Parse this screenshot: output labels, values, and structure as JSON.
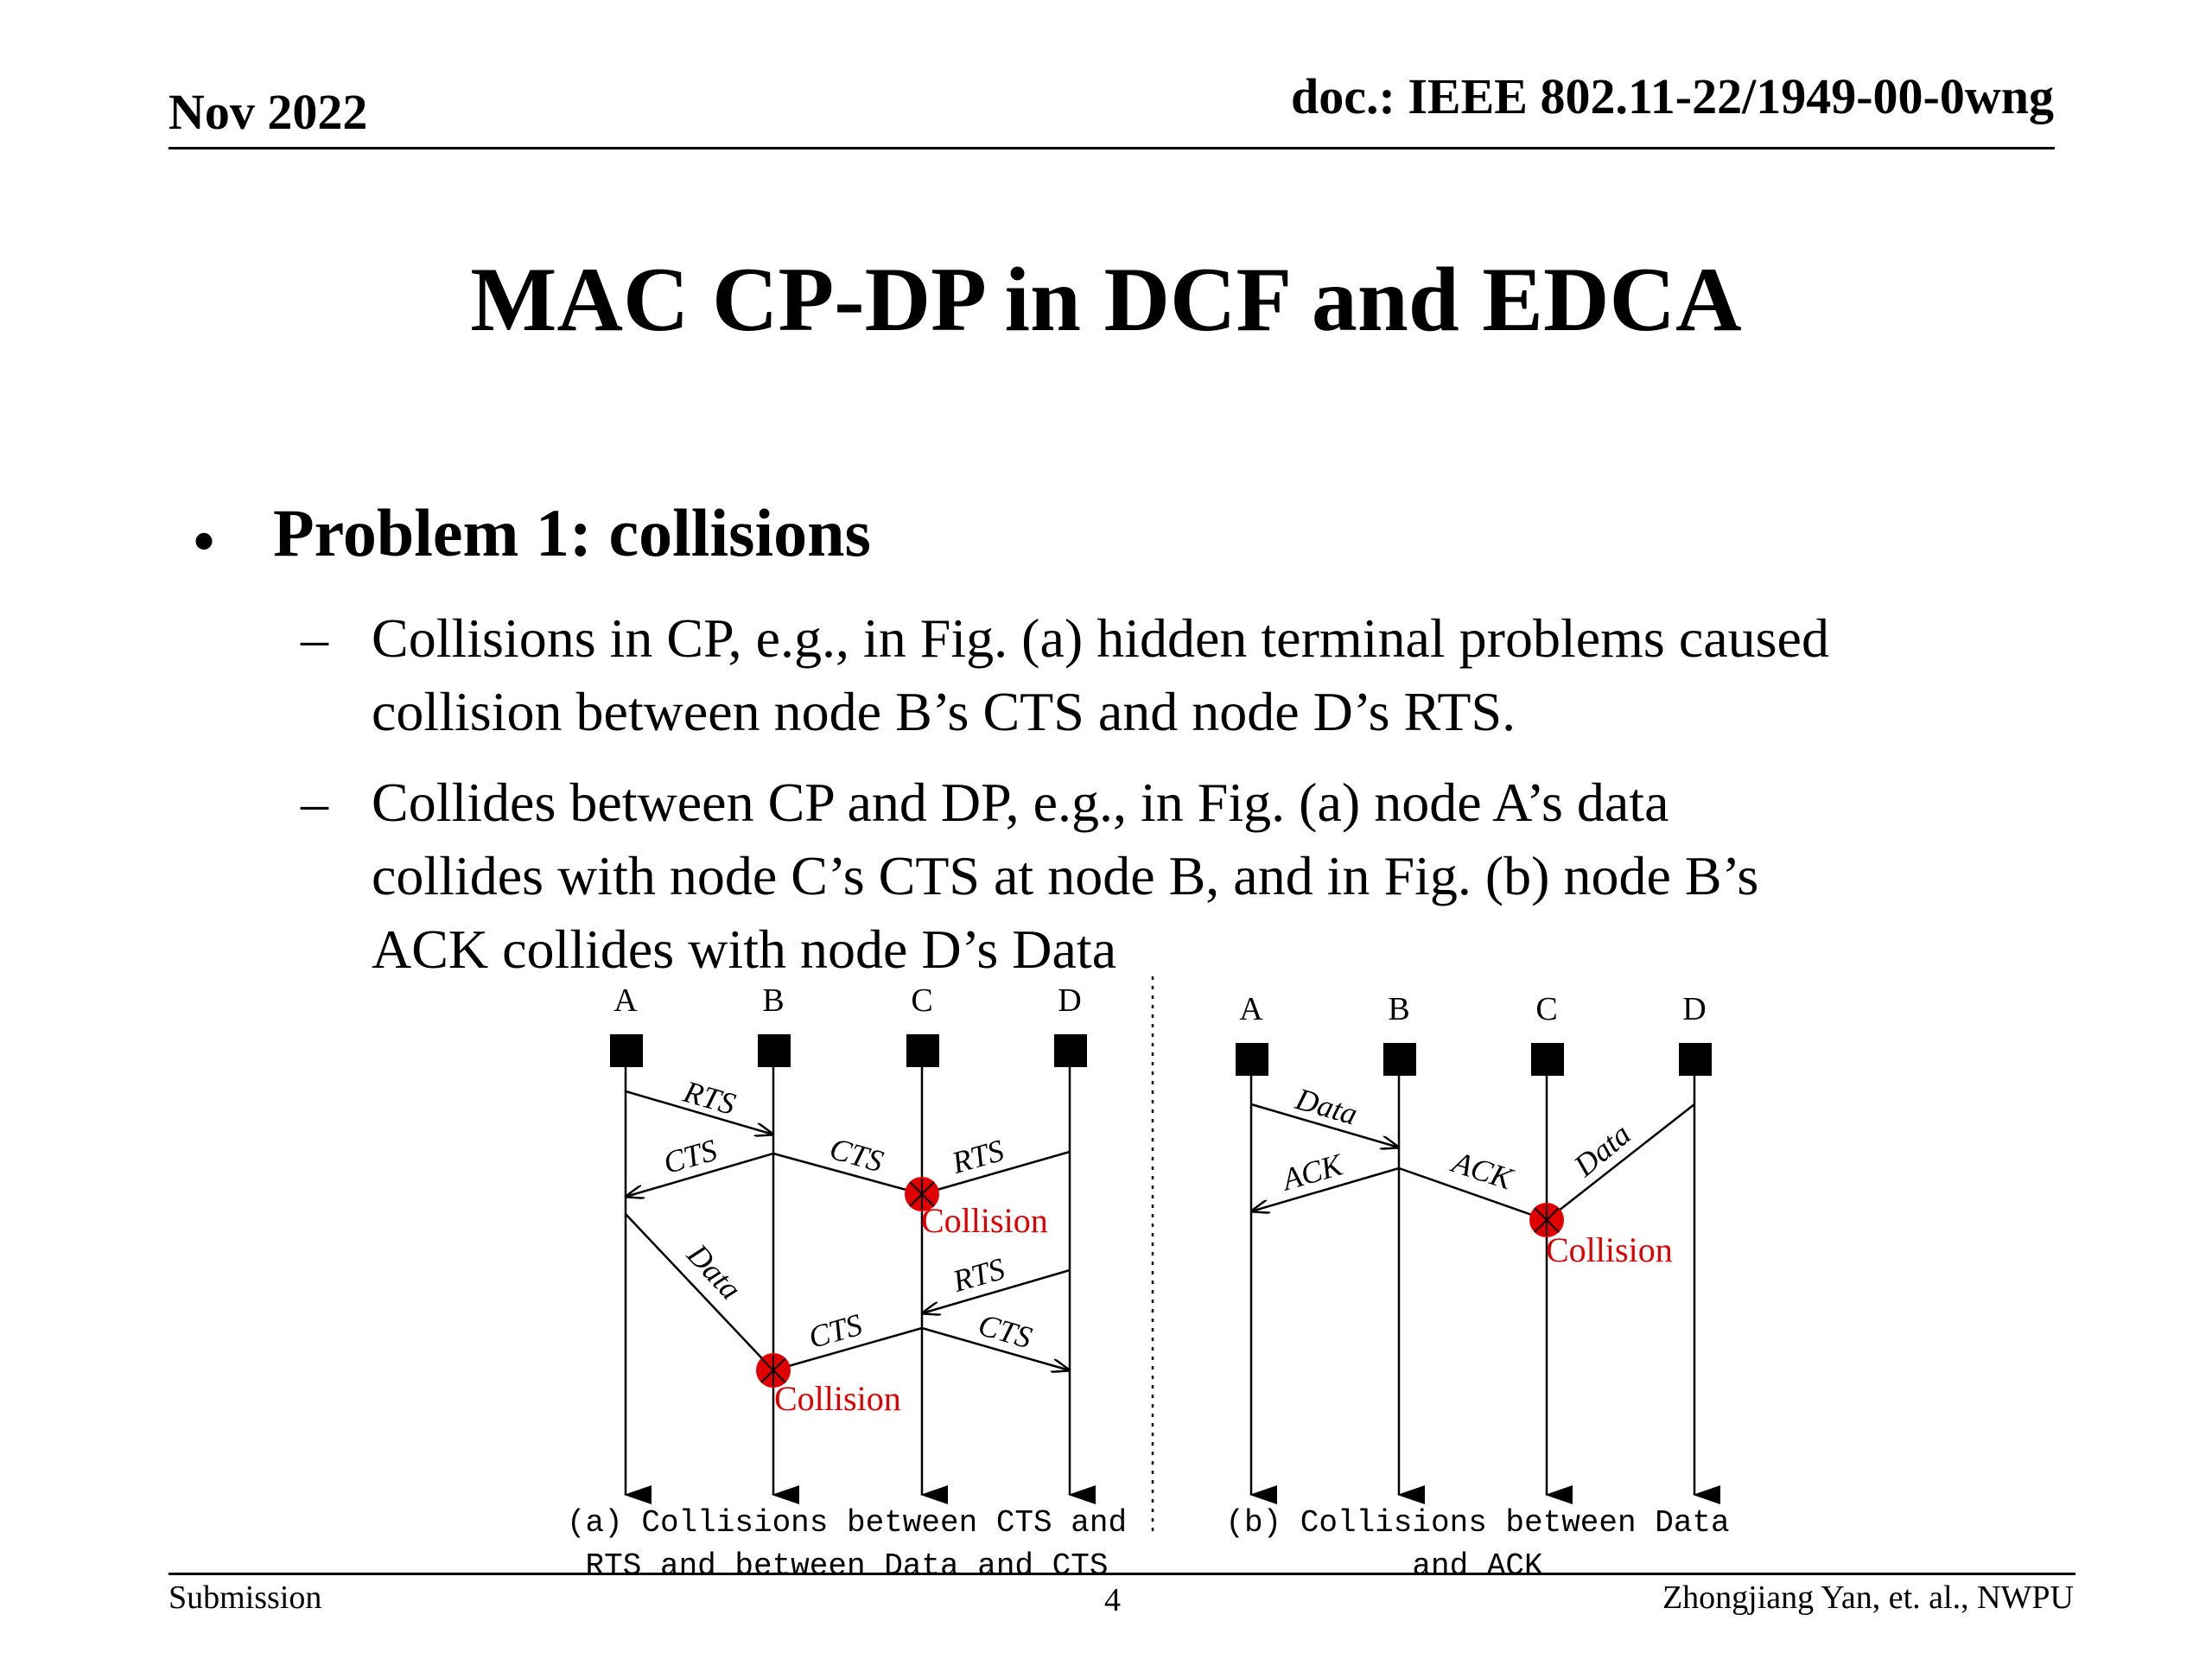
{
  "header": {
    "date": "Nov 2022",
    "doc": "doc.: IEEE 802.11-22/1949-00-0wng"
  },
  "title": "MAC CP-DP in DCF and EDCA",
  "bullet": {
    "marker": "•",
    "text": "Problem 1: collisions",
    "subs": [
      {
        "marker": "–",
        "lines": [
          "Collisions in CP, e.g., in Fig. (a) hidden terminal problems caused",
          "collision between node B’s CTS and node D’s RTS."
        ]
      },
      {
        "marker": "–",
        "lines": [
          "Collides between CP and DP, e.g., in Fig. (a) node A’s data",
          "collides with node C’s CTS at node B, and in Fig. (b) node B’s",
          "ACK collides with node D’s Data"
        ]
      }
    ]
  },
  "figure": {
    "nodes_a": [
      "A",
      "B",
      "C",
      "D"
    ],
    "nodes_b": [
      "A",
      "B",
      "C",
      "D"
    ],
    "labels": {
      "rts": "RTS",
      "cts": "CTS",
      "data": "Data",
      "ack": "ACK",
      "collision": "Collision"
    },
    "caption_a": [
      "(a) Collisions between CTS and",
      "RTS and between Data and CTS"
    ],
    "caption_b": [
      "(b) Collisions between Data",
      "and ACK"
    ],
    "collision_color": "#e00000"
  },
  "footer": {
    "left": "Submission",
    "page": "4",
    "right": "Zhongjiang Yan, et. al., NWPU"
  }
}
